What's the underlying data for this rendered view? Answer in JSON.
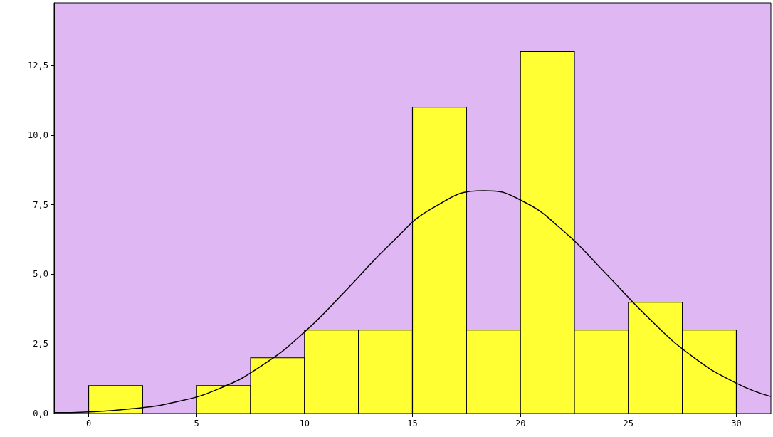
{
  "chart_data": {
    "type": "histogram",
    "bins": [
      0,
      2.5,
      5,
      7.5,
      10,
      12.5,
      15,
      17.5,
      20,
      22.5,
      25,
      27.5,
      30
    ],
    "values": [
      1,
      0,
      1,
      2,
      3,
      3,
      11,
      3,
      13,
      3,
      4,
      3
    ],
    "color": "#ffff33",
    "series": [
      {
        "type": "line",
        "color": "#000000",
        "x": [
          -1.6,
          0,
          2,
          4,
          6,
          8,
          10,
          12,
          14,
          16,
          18.3,
          20,
          22,
          24,
          26,
          28,
          30,
          31.6
        ],
        "values": [
          0.03,
          0.06,
          0.17,
          0.41,
          0.88,
          1.71,
          2.93,
          4.49,
          6.11,
          7.41,
          8,
          7.67,
          6.55,
          4.99,
          3.38,
          2.03,
          1.09,
          0.61
        ]
      }
    ],
    "xlim": [
      -1.6,
      31.6
    ],
    "xticks": [
      0,
      5,
      10,
      15,
      20,
      25,
      30
    ],
    "ylim": [
      0,
      14.75
    ],
    "yticks": [
      {
        "value": 0,
        "label": "0,0"
      },
      {
        "value": 2.5,
        "label": "2,5"
      },
      {
        "value": 5,
        "label": "5,0"
      },
      {
        "value": 7.5,
        "label": "7,5"
      },
      {
        "value": 10,
        "label": "10,0"
      },
      {
        "value": 12.5,
        "label": "12,5"
      }
    ],
    "grid": false,
    "marker": "none",
    "line_style": "solid"
  }
}
